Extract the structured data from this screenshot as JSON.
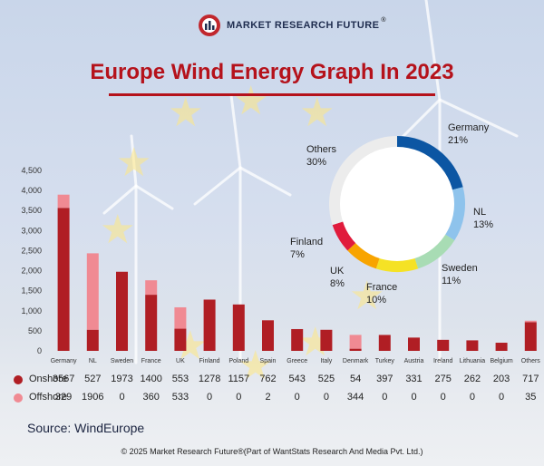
{
  "brand": {
    "name": "MARKET RESEARCH FUTURE",
    "registered": "®"
  },
  "title": "Europe Wind Energy Graph In 2023",
  "chart_data": [
    {
      "type": "bar",
      "stacked": true,
      "categories": [
        "Germany",
        "NL",
        "Sweden",
        "France",
        "UK",
        "Finland",
        "Poland",
        "Spain",
        "Greece",
        "Italy",
        "Denmark",
        "Turkey",
        "Austria",
        "Ireland",
        "Lithuania",
        "Belgium",
        "Others"
      ],
      "series": [
        {
          "name": "Onshore",
          "color": "#b01e24",
          "values": [
            3567,
            527,
            1973,
            1400,
            553,
            1278,
            1157,
            762,
            543,
            525,
            54,
            397,
            331,
            275,
            262,
            203,
            717
          ]
        },
        {
          "name": "Offshore",
          "color": "#f08a93",
          "values": [
            329,
            1906,
            0,
            360,
            533,
            0,
            0,
            2,
            0,
            0,
            344,
            0,
            0,
            0,
            0,
            0,
            35
          ]
        }
      ],
      "yticks": [
        "0",
        "500",
        "1,000",
        "1,500",
        "2,000",
        "2,500",
        "3,000",
        "3,500",
        "4,000",
        "4,500"
      ],
      "ylim": [
        0,
        4500
      ],
      "xlabel": "",
      "ylabel": ""
    },
    {
      "type": "pie",
      "donut": true,
      "labels": [
        "Germany",
        "NL",
        "Sweden",
        "France",
        "UK",
        "Finland",
        "Others"
      ],
      "values": [
        21,
        13,
        11,
        10,
        8,
        7,
        30
      ],
      "display": [
        "21%",
        "13%",
        "11%",
        "10%",
        "8%",
        "7%",
        "30%"
      ],
      "colors": [
        "#0c56a3",
        "#8ec3ec",
        "#a8dcb4",
        "#f5e225",
        "#f8a400",
        "#e01b3c",
        "#ececec"
      ]
    }
  ],
  "legend": {
    "onshore": "Onshore",
    "offshore": "Offshore"
  },
  "source": "Source: WindEurope",
  "footer": "© 2025 Market Research Future®(Part of WantStats Research And Media Pvt. Ltd.)"
}
